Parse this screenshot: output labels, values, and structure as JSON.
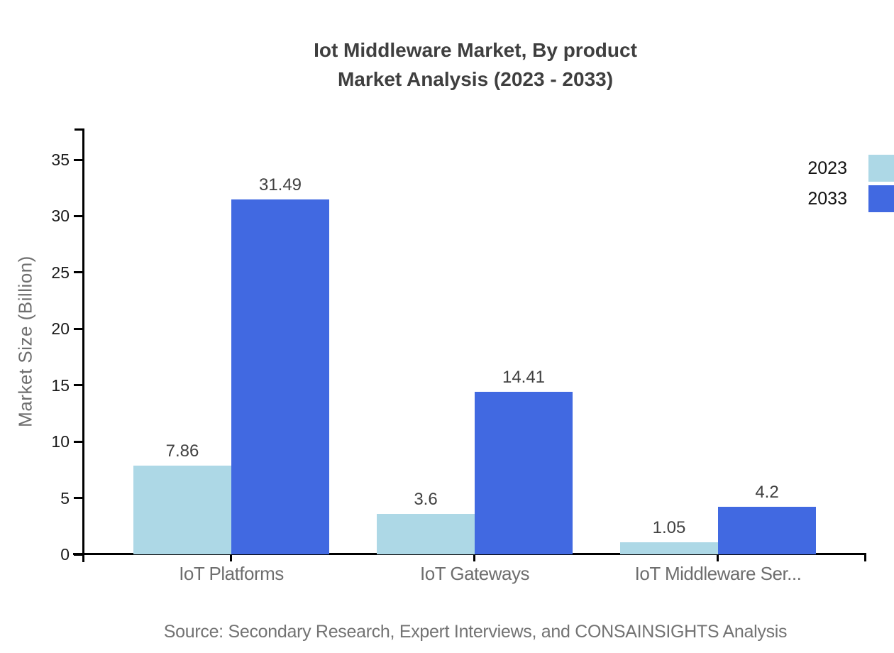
{
  "title": {
    "line1": "Iot Middleware Market, By product",
    "line2": "Market Analysis (2023 - 2033)"
  },
  "source": "Source: Secondary Research, Expert Interviews, and CONSAINSIGHTS Analysis",
  "chart_data": {
    "type": "bar",
    "title": "Iot Middleware Market, By product Market Analysis (2023 - 2033)",
    "categories": [
      "IoT Platforms",
      "IoT Gateways",
      "IoT Middleware Ser..."
    ],
    "series": [
      {
        "name": "2023",
        "color": "#ADD8E6",
        "values": [
          7.86,
          3.6,
          1.05
        ],
        "labels": [
          "7.86",
          "3.6",
          "1.05"
        ]
      },
      {
        "name": "2033",
        "color": "#4169E1",
        "values": [
          31.49,
          14.41,
          4.2
        ],
        "labels": [
          "31.49",
          "14.41",
          "4.2"
        ]
      }
    ],
    "xlabel": "",
    "ylabel": "Market Size (Billion)",
    "ylim": [
      0,
      35
    ],
    "y_ticks": [
      0,
      5,
      10,
      15,
      20,
      25,
      30,
      35
    ],
    "grid": false,
    "legend_position": "top-right"
  },
  "colors": {
    "axis": "#000000",
    "title_text": "#3f3f3f",
    "tick_text": "#1a1a1a",
    "category_text": "#6e6e6e",
    "value_text": "#404040",
    "legend_text": "#111111",
    "ylabel_text": "#6e6e6e",
    "source_text": "#737373"
  }
}
